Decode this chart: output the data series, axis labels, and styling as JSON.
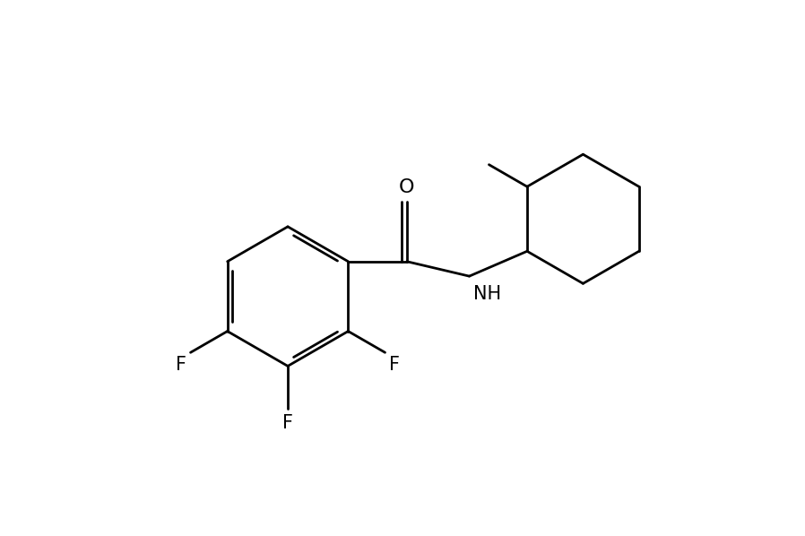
{
  "background_color": "#ffffff",
  "line_color": "#000000",
  "line_width": 2.0,
  "font_size": 15,
  "figsize": [
    8.98,
    5.98
  ],
  "dpi": 100,
  "xlim": [
    0.5,
    9.0
  ],
  "ylim": [
    0.3,
    5.9
  ]
}
